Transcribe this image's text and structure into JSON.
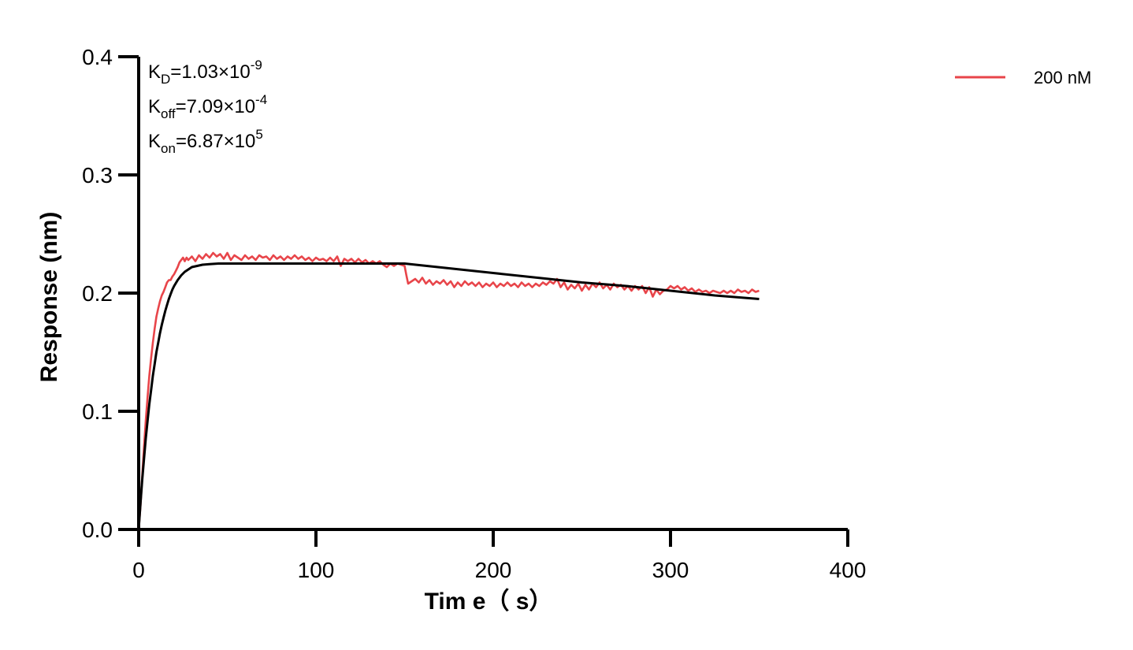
{
  "chart_data": {
    "type": "line",
    "xlabel": "Tim e（ s）",
    "ylabel": "Response (nm)",
    "xlim": [
      0,
      400
    ],
    "ylim": [
      0,
      0.4
    ],
    "x_ticks": [
      "0",
      "100",
      "200",
      "300",
      "400"
    ],
    "y_ticks": [
      "0.0",
      "0.1",
      "0.2",
      "0.3",
      "0.4"
    ],
    "grid": false,
    "legend_position": "top-right",
    "annotations": [
      {
        "base": "K",
        "sub": "D",
        "value": "=1.03×10",
        "exp": "-9"
      },
      {
        "base": "K",
        "sub": "off",
        "value": "=7.09×10",
        "exp": "-4"
      },
      {
        "base": "K",
        "sub": "on",
        "value": "=6.87×10",
        "exp": "5"
      }
    ],
    "series": [
      {
        "name": "200 nM",
        "color": "#e8454a",
        "role": "measured",
        "points": [
          [
            0,
            0
          ],
          [
            1,
            0.02
          ],
          [
            2,
            0.045
          ],
          [
            3,
            0.07
          ],
          [
            4,
            0.092
          ],
          [
            5,
            0.112
          ],
          [
            6,
            0.13
          ],
          [
            7,
            0.145
          ],
          [
            8,
            0.158
          ],
          [
            9,
            0.17
          ],
          [
            10,
            0.18
          ],
          [
            11,
            0.187
          ],
          [
            12,
            0.193
          ],
          [
            13,
            0.198
          ],
          [
            14,
            0.201
          ],
          [
            15,
            0.205
          ],
          [
            16,
            0.209
          ],
          [
            17,
            0.211
          ],
          [
            18,
            0.211
          ],
          [
            19,
            0.214
          ],
          [
            20,
            0.216
          ],
          [
            21,
            0.219
          ],
          [
            22,
            0.222
          ],
          [
            23,
            0.226
          ],
          [
            24,
            0.228
          ],
          [
            25,
            0.23
          ],
          [
            26,
            0.227
          ],
          [
            27,
            0.23
          ],
          [
            28,
            0.228
          ],
          [
            30,
            0.231
          ],
          [
            32,
            0.227
          ],
          [
            34,
            0.232
          ],
          [
            36,
            0.229
          ],
          [
            38,
            0.233
          ],
          [
            40,
            0.23
          ],
          [
            42,
            0.234
          ],
          [
            44,
            0.231
          ],
          [
            46,
            0.233
          ],
          [
            48,
            0.229
          ],
          [
            50,
            0.234
          ],
          [
            52,
            0.228
          ],
          [
            54,
            0.232
          ],
          [
            56,
            0.23
          ],
          [
            58,
            0.228
          ],
          [
            60,
            0.232
          ],
          [
            62,
            0.229
          ],
          [
            64,
            0.231
          ],
          [
            66,
            0.228
          ],
          [
            68,
            0.232
          ],
          [
            70,
            0.23
          ],
          [
            72,
            0.231
          ],
          [
            74,
            0.228
          ],
          [
            76,
            0.232
          ],
          [
            78,
            0.229
          ],
          [
            80,
            0.231
          ],
          [
            82,
            0.228
          ],
          [
            84,
            0.231
          ],
          [
            86,
            0.229
          ],
          [
            88,
            0.232
          ],
          [
            90,
            0.229
          ],
          [
            92,
            0.231
          ],
          [
            94,
            0.228
          ],
          [
            96,
            0.23
          ],
          [
            98,
            0.227
          ],
          [
            100,
            0.23
          ],
          [
            102,
            0.228
          ],
          [
            104,
            0.229
          ],
          [
            106,
            0.227
          ],
          [
            108,
            0.23
          ],
          [
            110,
            0.227
          ],
          [
            112,
            0.231
          ],
          [
            114,
            0.223
          ],
          [
            116,
            0.229
          ],
          [
            118,
            0.227
          ],
          [
            120,
            0.229
          ],
          [
            122,
            0.226
          ],
          [
            124,
            0.229
          ],
          [
            126,
            0.226
          ],
          [
            128,
            0.228
          ],
          [
            130,
            0.225
          ],
          [
            132,
            0.227
          ],
          [
            134,
            0.225
          ],
          [
            136,
            0.227
          ],
          [
            138,
            0.224
          ],
          [
            140,
            0.222
          ],
          [
            142,
            0.225
          ],
          [
            144,
            0.223
          ],
          [
            146,
            0.225
          ],
          [
            148,
            0.224
          ],
          [
            150,
            0.223
          ],
          [
            151,
            0.215
          ],
          [
            152,
            0.208
          ],
          [
            154,
            0.21
          ],
          [
            156,
            0.212
          ],
          [
            158,
            0.209
          ],
          [
            160,
            0.213
          ],
          [
            162,
            0.208
          ],
          [
            164,
            0.211
          ],
          [
            166,
            0.207
          ],
          [
            168,
            0.21
          ],
          [
            170,
            0.208
          ],
          [
            172,
            0.211
          ],
          [
            174,
            0.207
          ],
          [
            176,
            0.21
          ],
          [
            178,
            0.205
          ],
          [
            180,
            0.209
          ],
          [
            182,
            0.206
          ],
          [
            184,
            0.21
          ],
          [
            186,
            0.207
          ],
          [
            188,
            0.209
          ],
          [
            190,
            0.206
          ],
          [
            192,
            0.209
          ],
          [
            194,
            0.205
          ],
          [
            196,
            0.208
          ],
          [
            198,
            0.206
          ],
          [
            200,
            0.209
          ],
          [
            202,
            0.205
          ],
          [
            204,
            0.208
          ],
          [
            206,
            0.206
          ],
          [
            208,
            0.209
          ],
          [
            210,
            0.206
          ],
          [
            212,
            0.208
          ],
          [
            214,
            0.205
          ],
          [
            216,
            0.209
          ],
          [
            218,
            0.206
          ],
          [
            220,
            0.208
          ],
          [
            222,
            0.205
          ],
          [
            224,
            0.208
          ],
          [
            226,
            0.206
          ],
          [
            228,
            0.209
          ],
          [
            230,
            0.207
          ],
          [
            232,
            0.21
          ],
          [
            234,
            0.208
          ],
          [
            236,
            0.212
          ],
          [
            238,
            0.205
          ],
          [
            240,
            0.209
          ],
          [
            242,
            0.203
          ],
          [
            244,
            0.207
          ],
          [
            246,
            0.204
          ],
          [
            248,
            0.208
          ],
          [
            250,
            0.202
          ],
          [
            252,
            0.207
          ],
          [
            254,
            0.203
          ],
          [
            256,
            0.208
          ],
          [
            258,
            0.205
          ],
          [
            260,
            0.209
          ],
          [
            262,
            0.204
          ],
          [
            264,
            0.207
          ],
          [
            266,
            0.203
          ],
          [
            268,
            0.208
          ],
          [
            270,
            0.205
          ],
          [
            272,
            0.207
          ],
          [
            274,
            0.203
          ],
          [
            276,
            0.206
          ],
          [
            278,
            0.202
          ],
          [
            280,
            0.206
          ],
          [
            282,
            0.203
          ],
          [
            284,
            0.206
          ],
          [
            286,
            0.2
          ],
          [
            288,
            0.205
          ],
          [
            290,
            0.197
          ],
          [
            292,
            0.203
          ],
          [
            294,
            0.199
          ],
          [
            296,
            0.202
          ],
          [
            298,
            0.203
          ],
          [
            300,
            0.206
          ],
          [
            302,
            0.204
          ],
          [
            304,
            0.206
          ],
          [
            306,
            0.203
          ],
          [
            308,
            0.205
          ],
          [
            310,
            0.202
          ],
          [
            312,
            0.204
          ],
          [
            314,
            0.201
          ],
          [
            316,
            0.203
          ],
          [
            318,
            0.201
          ],
          [
            320,
            0.202
          ],
          [
            322,
            0.2
          ],
          [
            324,
            0.202
          ],
          [
            326,
            0.201
          ],
          [
            328,
            0.2
          ],
          [
            330,
            0.202
          ],
          [
            332,
            0.2
          ],
          [
            334,
            0.202
          ],
          [
            336,
            0.2
          ],
          [
            338,
            0.203
          ],
          [
            340,
            0.201
          ],
          [
            342,
            0.202
          ],
          [
            344,
            0.2
          ],
          [
            346,
            0.203
          ],
          [
            348,
            0.201
          ],
          [
            350,
            0.202
          ]
        ]
      },
      {
        "color": "#000000",
        "role": "fit",
        "points": [
          [
            0,
            0
          ],
          [
            1,
            0.022
          ],
          [
            2,
            0.042
          ],
          [
            3,
            0.06
          ],
          [
            4,
            0.077
          ],
          [
            5,
            0.092
          ],
          [
            6,
            0.106
          ],
          [
            7,
            0.118
          ],
          [
            8,
            0.13
          ],
          [
            9,
            0.14
          ],
          [
            10,
            0.15
          ],
          [
            11,
            0.158
          ],
          [
            12,
            0.166
          ],
          [
            13,
            0.173
          ],
          [
            14,
            0.179
          ],
          [
            15,
            0.185
          ],
          [
            16,
            0.19
          ],
          [
            17,
            0.195
          ],
          [
            18,
            0.199
          ],
          [
            19,
            0.203
          ],
          [
            20,
            0.206
          ],
          [
            22,
            0.211
          ],
          [
            24,
            0.215
          ],
          [
            26,
            0.218
          ],
          [
            28,
            0.22
          ],
          [
            30,
            0.222
          ],
          [
            33,
            0.223
          ],
          [
            36,
            0.224
          ],
          [
            40,
            0.2245
          ],
          [
            45,
            0.225
          ],
          [
            50,
            0.225
          ],
          [
            60,
            0.225
          ],
          [
            80,
            0.225
          ],
          [
            100,
            0.225
          ],
          [
            120,
            0.225
          ],
          [
            140,
            0.225
          ],
          [
            150,
            0.225
          ],
          [
            175,
            0.221
          ],
          [
            200,
            0.217
          ],
          [
            225,
            0.213
          ],
          [
            250,
            0.209
          ],
          [
            275,
            0.206
          ],
          [
            300,
            0.202
          ],
          [
            325,
            0.198
          ],
          [
            350,
            0.195
          ]
        ]
      }
    ]
  }
}
